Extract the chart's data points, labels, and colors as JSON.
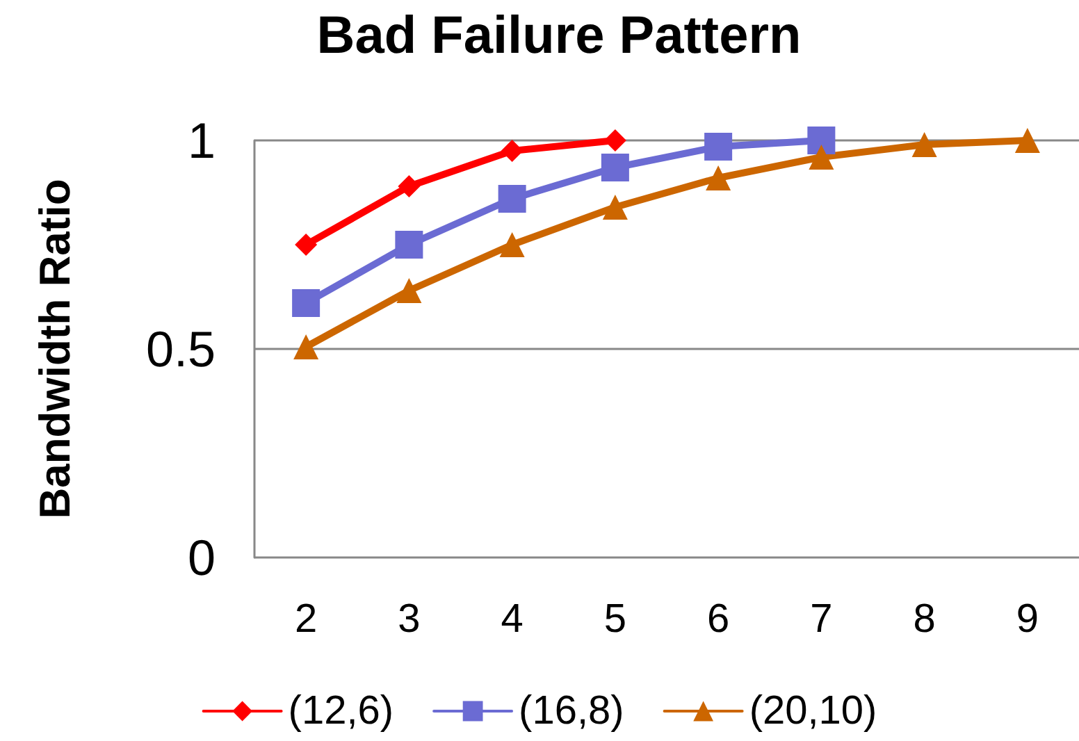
{
  "chart_data": {
    "type": "line",
    "title": "Bad Failure Pattern",
    "ylabel": "Bandwidth Ratio",
    "categories": [
      "2",
      "3",
      "4",
      "5",
      "6",
      "7",
      "8",
      "9"
    ],
    "series": [
      {
        "name": "(12,6)",
        "color": "#ff0000",
        "marker": "diamond",
        "values": [
          0.75,
          0.89,
          0.975,
          1.0,
          null,
          null,
          null,
          null
        ]
      },
      {
        "name": "(16,8)",
        "color": "#6b6bd3",
        "marker": "square",
        "values": [
          0.61,
          0.75,
          0.86,
          0.935,
          0.985,
          1.0,
          null,
          null
        ]
      },
      {
        "name": "(20,10)",
        "color": "#cc6600",
        "marker": "triangle",
        "values": [
          0.505,
          0.64,
          0.75,
          0.84,
          0.91,
          0.96,
          0.99,
          1.0
        ]
      }
    ],
    "ylim": [
      0,
      1
    ],
    "yticks": [
      0,
      0.5,
      1
    ],
    "grid": "y",
    "legend": "bottom"
  }
}
